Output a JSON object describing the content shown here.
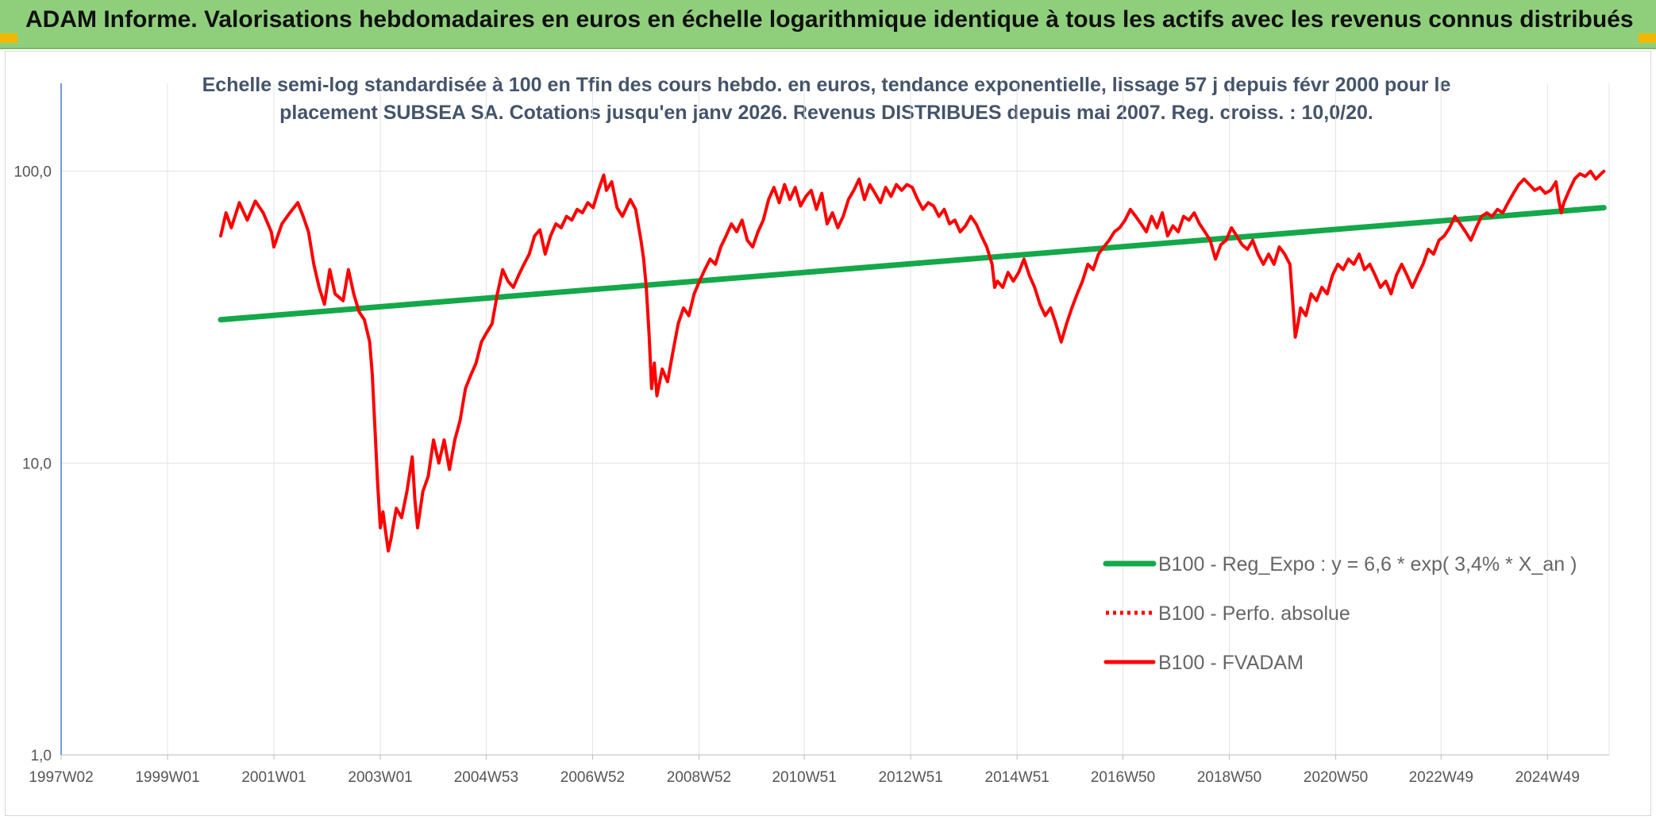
{
  "header": {
    "title": "ADAM Informe. Valorisations hebdomadaires en euros en échelle logarithmique identique à tous les actifs avec les revenus connus distribués"
  },
  "colors": {
    "banner": "#8fcf7c",
    "accent_corner": "#f2b705",
    "fvadam": "#ff0000",
    "regression": "#14a84a",
    "grid": "#e3e3e3"
  },
  "chart_data": {
    "type": "line",
    "subtitle_lines": [
      "Echelle semi-log standardisée à 100 en Tfin des cours hebdo. en euros, tendance exponentielle, lissage 57 j depuis févr 2000 pour le",
      "placement SUBSEA SA. Cotations jusqu'en janv 2026. Revenus DISTRIBUES depuis mai 2007. Reg. croiss. : 10,0/20."
    ],
    "y_scale": "log",
    "ylim": [
      1,
      200
    ],
    "y_ticks": [
      {
        "value": 1,
        "label": "1,0"
      },
      {
        "value": 10,
        "label": "10,0"
      },
      {
        "value": 100,
        "label": "100,0"
      }
    ],
    "xlim": [
      1997.0,
      2026.1
    ],
    "x_ticks": [
      {
        "value": 1997.0,
        "label": "1997W02"
      },
      {
        "value": 1999.0,
        "label": "1999W01"
      },
      {
        "value": 2001.0,
        "label": "2001W01"
      },
      {
        "value": 2003.0,
        "label": "2003W01"
      },
      {
        "value": 2004.99,
        "label": "2004W53"
      },
      {
        "value": 2006.99,
        "label": "2006W52"
      },
      {
        "value": 2008.99,
        "label": "2008W52"
      },
      {
        "value": 2010.97,
        "label": "2010W51"
      },
      {
        "value": 2012.97,
        "label": "2012W51"
      },
      {
        "value": 2014.97,
        "label": "2014W51"
      },
      {
        "value": 2016.96,
        "label": "2016W50"
      },
      {
        "value": 2018.96,
        "label": "2018W50"
      },
      {
        "value": 2020.96,
        "label": "2020W50"
      },
      {
        "value": 2022.94,
        "label": "2022W49"
      },
      {
        "value": 2024.94,
        "label": "2024W49"
      }
    ],
    "grid": true,
    "legend_position": "bottom-right",
    "series": [
      {
        "name": "B100 - Reg_Expo : y = 6,6 * exp( 3,4% *  X_an )",
        "style": "solid-thick",
        "color": "#14a84a",
        "points": [
          [
            2000.0,
            31
          ],
          [
            2026.0,
            75
          ]
        ]
      },
      {
        "name": "B100 - Perfo. absolue",
        "style": "dotted",
        "color": "#ff0000",
        "points": []
      },
      {
        "name": "B100 - FVADAM",
        "style": "solid",
        "color": "#ff0000",
        "points": [
          [
            2000.0,
            60
          ],
          [
            2000.1,
            72
          ],
          [
            2000.2,
            64
          ],
          [
            2000.35,
            78
          ],
          [
            2000.5,
            68
          ],
          [
            2000.65,
            79
          ],
          [
            2000.8,
            72
          ],
          [
            2000.95,
            62
          ],
          [
            2001.0,
            55
          ],
          [
            2001.15,
            66
          ],
          [
            2001.3,
            72
          ],
          [
            2001.45,
            78
          ],
          [
            2001.55,
            70
          ],
          [
            2001.65,
            62
          ],
          [
            2001.75,
            48
          ],
          [
            2001.85,
            40
          ],
          [
            2001.95,
            35
          ],
          [
            2002.05,
            46
          ],
          [
            2002.15,
            38
          ],
          [
            2002.3,
            36
          ],
          [
            2002.4,
            46
          ],
          [
            2002.5,
            38
          ],
          [
            2002.6,
            33
          ],
          [
            2002.7,
            31
          ],
          [
            2002.8,
            26
          ],
          [
            2002.85,
            20
          ],
          [
            2002.9,
            13
          ],
          [
            2002.95,
            8.5
          ],
          [
            2003.0,
            6
          ],
          [
            2003.05,
            6.8
          ],
          [
            2003.1,
            5.8
          ],
          [
            2003.15,
            5
          ],
          [
            2003.2,
            5.5
          ],
          [
            2003.3,
            7
          ],
          [
            2003.4,
            6.5
          ],
          [
            2003.5,
            8
          ],
          [
            2003.6,
            10.5
          ],
          [
            2003.65,
            7.5
          ],
          [
            2003.7,
            6
          ],
          [
            2003.8,
            8
          ],
          [
            2003.9,
            9
          ],
          [
            2004.0,
            12
          ],
          [
            2004.1,
            10
          ],
          [
            2004.2,
            12
          ],
          [
            2004.3,
            9.5
          ],
          [
            2004.4,
            12
          ],
          [
            2004.5,
            14
          ],
          [
            2004.6,
            18
          ],
          [
            2004.7,
            20
          ],
          [
            2004.8,
            22
          ],
          [
            2004.9,
            26
          ],
          [
            2005.0,
            28
          ],
          [
            2005.1,
            30
          ],
          [
            2005.2,
            38
          ],
          [
            2005.3,
            46
          ],
          [
            2005.4,
            42
          ],
          [
            2005.5,
            40
          ],
          [
            2005.6,
            44
          ],
          [
            2005.7,
            48
          ],
          [
            2005.8,
            52
          ],
          [
            2005.9,
            60
          ],
          [
            2006.0,
            63
          ],
          [
            2006.1,
            52
          ],
          [
            2006.2,
            60
          ],
          [
            2006.3,
            66
          ],
          [
            2006.4,
            64
          ],
          [
            2006.5,
            70
          ],
          [
            2006.6,
            68
          ],
          [
            2006.7,
            74
          ],
          [
            2006.8,
            72
          ],
          [
            2006.9,
            78
          ],
          [
            2007.0,
            75
          ],
          [
            2007.1,
            86
          ],
          [
            2007.2,
            97
          ],
          [
            2007.25,
            86
          ],
          [
            2007.35,
            92
          ],
          [
            2007.45,
            75
          ],
          [
            2007.55,
            70
          ],
          [
            2007.7,
            80
          ],
          [
            2007.8,
            74
          ],
          [
            2007.9,
            58
          ],
          [
            2007.95,
            50
          ],
          [
            2008.0,
            40
          ],
          [
            2008.05,
            28
          ],
          [
            2008.1,
            18
          ],
          [
            2008.15,
            22
          ],
          [
            2008.2,
            17
          ],
          [
            2008.3,
            21
          ],
          [
            2008.4,
            19
          ],
          [
            2008.5,
            24
          ],
          [
            2008.6,
            30
          ],
          [
            2008.7,
            34
          ],
          [
            2008.8,
            32
          ],
          [
            2008.9,
            38
          ],
          [
            2009.0,
            42
          ],
          [
            2009.1,
            46
          ],
          [
            2009.2,
            50
          ],
          [
            2009.3,
            48
          ],
          [
            2009.4,
            55
          ],
          [
            2009.5,
            60
          ],
          [
            2009.6,
            66
          ],
          [
            2009.7,
            62
          ],
          [
            2009.8,
            68
          ],
          [
            2009.9,
            58
          ],
          [
            2010.0,
            55
          ],
          [
            2010.1,
            62
          ],
          [
            2010.2,
            68
          ],
          [
            2010.3,
            80
          ],
          [
            2010.4,
            88
          ],
          [
            2010.5,
            78
          ],
          [
            2010.6,
            90
          ],
          [
            2010.7,
            80
          ],
          [
            2010.8,
            88
          ],
          [
            2010.9,
            76
          ],
          [
            2011.0,
            82
          ],
          [
            2011.1,
            86
          ],
          [
            2011.2,
            74
          ],
          [
            2011.3,
            84
          ],
          [
            2011.4,
            66
          ],
          [
            2011.5,
            72
          ],
          [
            2011.6,
            64
          ],
          [
            2011.7,
            70
          ],
          [
            2011.8,
            80
          ],
          [
            2011.9,
            86
          ],
          [
            2012.0,
            94
          ],
          [
            2012.1,
            80
          ],
          [
            2012.2,
            90
          ],
          [
            2012.3,
            84
          ],
          [
            2012.4,
            78
          ],
          [
            2012.5,
            88
          ],
          [
            2012.6,
            82
          ],
          [
            2012.7,
            90
          ],
          [
            2012.8,
            86
          ],
          [
            2012.9,
            90
          ],
          [
            2013.0,
            88
          ],
          [
            2013.1,
            80
          ],
          [
            2013.2,
            74
          ],
          [
            2013.3,
            78
          ],
          [
            2013.4,
            76
          ],
          [
            2013.5,
            70
          ],
          [
            2013.6,
            74
          ],
          [
            2013.7,
            66
          ],
          [
            2013.8,
            68
          ],
          [
            2013.9,
            62
          ],
          [
            2014.0,
            65
          ],
          [
            2014.1,
            70
          ],
          [
            2014.2,
            66
          ],
          [
            2014.3,
            60
          ],
          [
            2014.4,
            55
          ],
          [
            2014.5,
            48
          ],
          [
            2014.55,
            40
          ],
          [
            2014.6,
            42
          ],
          [
            2014.7,
            40
          ],
          [
            2014.8,
            45
          ],
          [
            2014.9,
            42
          ],
          [
            2015.0,
            45
          ],
          [
            2015.1,
            50
          ],
          [
            2015.2,
            44
          ],
          [
            2015.3,
            40
          ],
          [
            2015.4,
            35
          ],
          [
            2015.5,
            32
          ],
          [
            2015.6,
            34
          ],
          [
            2015.7,
            30
          ],
          [
            2015.8,
            26
          ],
          [
            2015.9,
            30
          ],
          [
            2016.0,
            34
          ],
          [
            2016.1,
            38
          ],
          [
            2016.2,
            42
          ],
          [
            2016.3,
            48
          ],
          [
            2016.4,
            46
          ],
          [
            2016.5,
            52
          ],
          [
            2016.6,
            55
          ],
          [
            2016.7,
            58
          ],
          [
            2016.8,
            62
          ],
          [
            2016.9,
            64
          ],
          [
            2017.0,
            68
          ],
          [
            2017.1,
            74
          ],
          [
            2017.2,
            70
          ],
          [
            2017.3,
            66
          ],
          [
            2017.4,
            62
          ],
          [
            2017.5,
            70
          ],
          [
            2017.6,
            64
          ],
          [
            2017.7,
            72
          ],
          [
            2017.8,
            60
          ],
          [
            2017.9,
            65
          ],
          [
            2018.0,
            62
          ],
          [
            2018.1,
            70
          ],
          [
            2018.2,
            68
          ],
          [
            2018.3,
            72
          ],
          [
            2018.4,
            66
          ],
          [
            2018.5,
            62
          ],
          [
            2018.6,
            58
          ],
          [
            2018.7,
            50
          ],
          [
            2018.8,
            56
          ],
          [
            2018.9,
            58
          ],
          [
            2019.0,
            64
          ],
          [
            2019.1,
            60
          ],
          [
            2019.2,
            56
          ],
          [
            2019.3,
            54
          ],
          [
            2019.4,
            58
          ],
          [
            2019.5,
            52
          ],
          [
            2019.6,
            48
          ],
          [
            2019.7,
            52
          ],
          [
            2019.8,
            48
          ],
          [
            2019.9,
            55
          ],
          [
            2020.0,
            52
          ],
          [
            2020.1,
            48
          ],
          [
            2020.15,
            36
          ],
          [
            2020.2,
            27
          ],
          [
            2020.25,
            30
          ],
          [
            2020.3,
            34
          ],
          [
            2020.4,
            32
          ],
          [
            2020.5,
            38
          ],
          [
            2020.6,
            36
          ],
          [
            2020.7,
            40
          ],
          [
            2020.8,
            38
          ],
          [
            2020.9,
            44
          ],
          [
            2021.0,
            48
          ],
          [
            2021.1,
            46
          ],
          [
            2021.2,
            50
          ],
          [
            2021.3,
            48
          ],
          [
            2021.4,
            52
          ],
          [
            2021.5,
            46
          ],
          [
            2021.6,
            48
          ],
          [
            2021.7,
            44
          ],
          [
            2021.8,
            40
          ],
          [
            2021.9,
            42
          ],
          [
            2022.0,
            38
          ],
          [
            2022.1,
            44
          ],
          [
            2022.2,
            48
          ],
          [
            2022.3,
            44
          ],
          [
            2022.4,
            40
          ],
          [
            2022.5,
            44
          ],
          [
            2022.6,
            48
          ],
          [
            2022.7,
            54
          ],
          [
            2022.8,
            52
          ],
          [
            2022.9,
            58
          ],
          [
            2023.0,
            60
          ],
          [
            2023.1,
            64
          ],
          [
            2023.2,
            70
          ],
          [
            2023.3,
            66
          ],
          [
            2023.4,
            62
          ],
          [
            2023.5,
            58
          ],
          [
            2023.6,
            64
          ],
          [
            2023.7,
            70
          ],
          [
            2023.8,
            72
          ],
          [
            2023.9,
            70
          ],
          [
            2024.0,
            74
          ],
          [
            2024.1,
            72
          ],
          [
            2024.2,
            78
          ],
          [
            2024.3,
            84
          ],
          [
            2024.4,
            90
          ],
          [
            2024.5,
            94
          ],
          [
            2024.6,
            90
          ],
          [
            2024.7,
            86
          ],
          [
            2024.8,
            88
          ],
          [
            2024.9,
            84
          ],
          [
            2025.0,
            86
          ],
          [
            2025.1,
            92
          ],
          [
            2025.15,
            80
          ],
          [
            2025.2,
            72
          ],
          [
            2025.25,
            78
          ],
          [
            2025.35,
            86
          ],
          [
            2025.45,
            94
          ],
          [
            2025.55,
            98
          ],
          [
            2025.65,
            96
          ],
          [
            2025.75,
            100
          ],
          [
            2025.85,
            94
          ],
          [
            2025.95,
            98
          ],
          [
            2026.0,
            100
          ]
        ]
      }
    ]
  }
}
